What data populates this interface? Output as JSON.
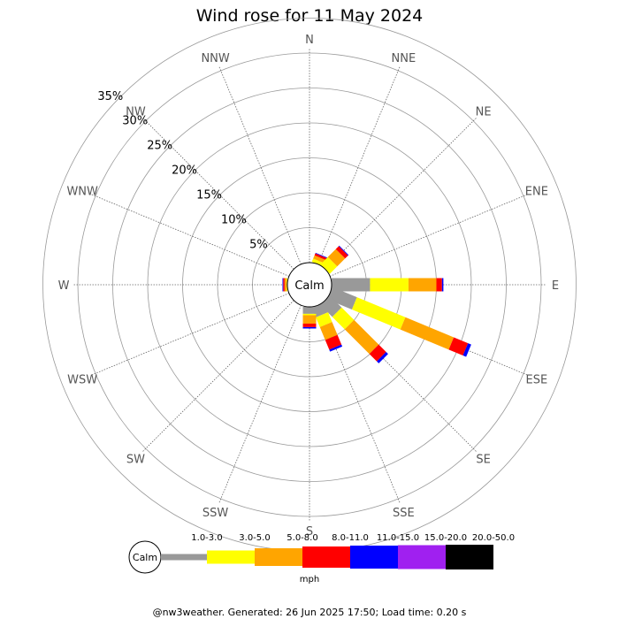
{
  "chart_data": {
    "type": "wind-rose",
    "title": "Wind rose for 11 May 2024",
    "center_label": "Calm",
    "directions": [
      "N",
      "NNE",
      "NE",
      "ENE",
      "E",
      "ESE",
      "SE",
      "SSE",
      "S",
      "SSW",
      "SW",
      "WSW",
      "W",
      "WNW",
      "NW",
      "NNW"
    ],
    "rings_percent": [
      5,
      10,
      15,
      20,
      25,
      30,
      35
    ],
    "ring_label_suffix": "%",
    "speed_bins": [
      {
        "label": "1.0-3.0",
        "color": "#999999"
      },
      {
        "label": "3.0-5.0",
        "color": "#ffff00"
      },
      {
        "label": "5.0-8.0",
        "color": "#ffa500"
      },
      {
        "label": "8.0-11.0",
        "color": "#ff0000"
      },
      {
        "label": "11.0-15.0",
        "color": "#0000ff"
      },
      {
        "label": "15.0-20.0",
        "color": "#a020f0"
      },
      {
        "label": "20.0-50.0",
        "color": "#000000"
      }
    ],
    "units": "mph",
    "frequencies_percent": {
      "N": [
        0,
        0,
        0,
        0,
        0,
        0,
        0
      ],
      "NNE": [
        0,
        0.5,
        0.5,
        0.3,
        0.1,
        0,
        0
      ],
      "NE": [
        0,
        1.5,
        1.6,
        0.6,
        0.1,
        0,
        0
      ],
      "ENE": [
        0,
        0,
        0,
        0,
        0,
        0,
        0
      ],
      "E": [
        5.5,
        5.5,
        4.0,
        0.8,
        0.2,
        0,
        0
      ],
      "ESE": [
        3.8,
        7.5,
        7.5,
        2.2,
        0.5,
        0,
        0
      ],
      "SE": [
        2.4,
        2.5,
        5.0,
        1.5,
        0.4,
        0,
        0
      ],
      "SSE": [
        1.5,
        1.5,
        2.0,
        1.5,
        0.3,
        0,
        0
      ],
      "S": [
        1.0,
        0.2,
        1.2,
        0.5,
        0.2,
        0,
        0
      ],
      "SSW": [
        0,
        0,
        0,
        0,
        0,
        0,
        0
      ],
      "SW": [
        0,
        0,
        0,
        0,
        0,
        0,
        0
      ],
      "WSW": [
        0,
        0,
        0,
        0,
        0,
        0,
        0
      ],
      "W": [
        0,
        0.1,
        0.3,
        0.2,
        0.1,
        0,
        0
      ],
      "WNW": [
        0,
        0,
        0,
        0,
        0,
        0,
        0
      ],
      "NW": [
        0,
        0,
        0,
        0,
        0,
        0,
        0
      ],
      "NNW": [
        0,
        0,
        0,
        0,
        0,
        0,
        0
      ]
    }
  },
  "footer": "@nw3weather. Generated: 26 Jun 2025 17:50; Load time: 0.20 s"
}
